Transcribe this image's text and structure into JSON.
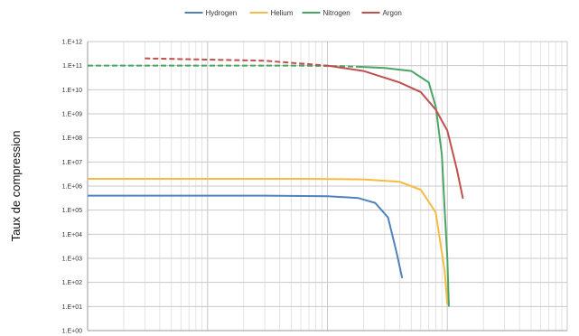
{
  "chart_data": {
    "type": "line",
    "title": "",
    "xlabel": "",
    "ylabel": "Taux de compression",
    "yscale": "log",
    "ylim": [
      1,
      1000000000000
    ],
    "y_tick_labels": [
      "1.E+00",
      "1.E+01",
      "1.E+02",
      "1.E+03",
      "1.E+04",
      "1.E+05",
      "1.E+06",
      "1.E+07",
      "1.E+08",
      "1.E+09",
      "1.E+10",
      "1.E+11",
      "1.E+12"
    ],
    "xscale": "log",
    "xlim": [
      1,
      10000
    ],
    "grid": true,
    "legend_position": "top",
    "series": [
      {
        "name": "Hydrogen",
        "color": "#4f81bd",
        "points": [
          [
            1,
            400000
          ],
          [
            30,
            400000
          ],
          [
            100,
            380000
          ],
          [
            180,
            320000
          ],
          [
            250,
            200000
          ],
          [
            320,
            50000
          ],
          [
            380,
            1500
          ],
          [
            420,
            150
          ]
        ]
      },
      {
        "name": "Helium",
        "color": "#f6bb42",
        "points": [
          [
            1,
            2000000
          ],
          [
            60,
            2000000
          ],
          [
            200,
            1900000
          ],
          [
            400,
            1500000
          ],
          [
            600,
            700000
          ],
          [
            800,
            80000
          ],
          [
            950,
            300
          ],
          [
            1000,
            12
          ]
        ]
      },
      {
        "name": "Nitrogen",
        "color": "#4aa564",
        "dashed_until": 180,
        "points": [
          [
            1,
            100000000000
          ],
          [
            60,
            100000000000
          ],
          [
            130,
            95000000000
          ],
          [
            180,
            90000000000
          ],
          [
            300,
            80000000000
          ],
          [
            500,
            60000000000
          ],
          [
            700,
            20000000000
          ],
          [
            800,
            2000000000
          ],
          [
            900,
            20000000
          ],
          [
            950,
            100000
          ],
          [
            1000,
            1000
          ],
          [
            1030,
            10
          ]
        ]
      },
      {
        "name": "Argon",
        "color": "#c0504d",
        "dashed_until": 100,
        "points": [
          [
            3,
            200000000000
          ],
          [
            30,
            160000000000
          ],
          [
            100,
            100000000000
          ],
          [
            200,
            60000000000
          ],
          [
            400,
            20000000000
          ],
          [
            600,
            8000000000
          ],
          [
            800,
            1500000000
          ],
          [
            1000,
            200000000
          ],
          [
            1200,
            5000000
          ],
          [
            1350,
            300000
          ]
        ]
      }
    ]
  }
}
